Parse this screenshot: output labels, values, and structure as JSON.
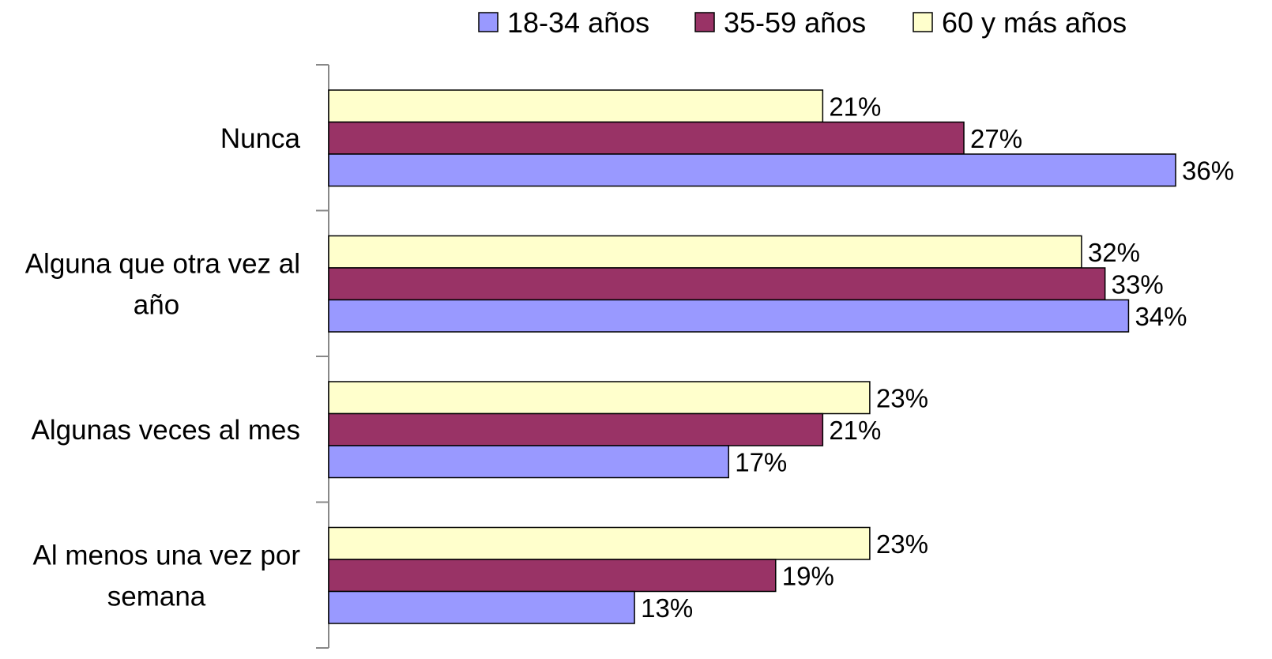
{
  "chart_data": {
    "type": "bar",
    "orientation": "horizontal",
    "categories": [
      "Nunca",
      "Alguna que otra vez al año",
      "Algunas veces al mes",
      "Al menos una vez por semana"
    ],
    "category_lines": [
      [
        "Nunca"
      ],
      [
        "Alguna que otra vez al",
        "año"
      ],
      [
        "Algunas veces al mes"
      ],
      [
        "Al menos una vez por",
        "semana"
      ]
    ],
    "series": [
      {
        "name": "18-34 años",
        "color": "#9999ff",
        "values": [
          36,
          34,
          17,
          13
        ],
        "labels": [
          "36%",
          "34%",
          "17%",
          "13%"
        ]
      },
      {
        "name": "35-59 años",
        "color": "#993366",
        "values": [
          27,
          33,
          21,
          19
        ],
        "labels": [
          "27%",
          "33%",
          "21%",
          "19%"
        ]
      },
      {
        "name": "60 y más años",
        "color": "#ffffcc",
        "values": [
          21,
          32,
          23,
          23
        ],
        "labels": [
          "21%",
          "32%",
          "23%",
          "23%"
        ]
      }
    ],
    "unit": "%",
    "xlim": [
      0,
      36
    ],
    "grid": false,
    "legend_position": "top"
  }
}
